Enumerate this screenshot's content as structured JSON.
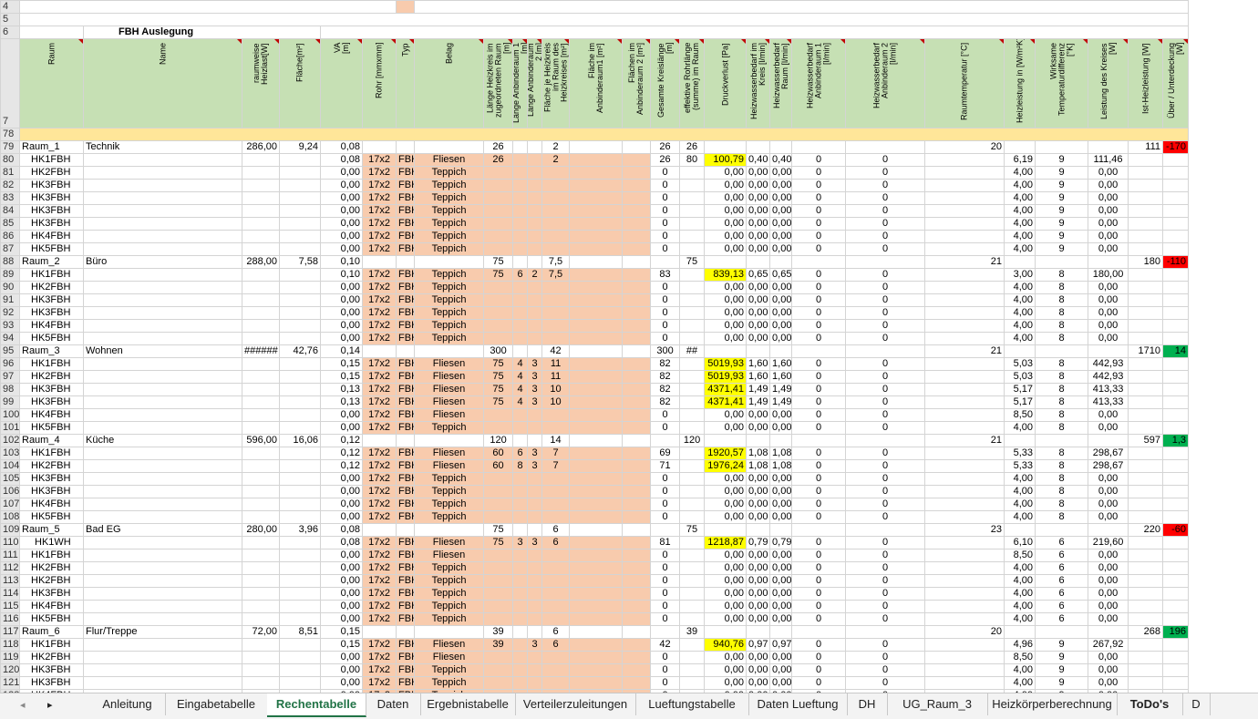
{
  "top_rows": {
    "row4": "4",
    "row5": "5",
    "row6": "6",
    "title": "FBH Auslegung",
    "row7": "7"
  },
  "headers": [
    "Raum",
    "Name",
    "raumweise\nHeizlast[W]",
    "Fläche[m²]",
    "VA\n[m]",
    "Rohr [mmxmm]",
    "Typ",
    "Belag",
    "Länge Heizkreis im\nzugeordneten Raum\n[m]",
    "Länge Anbinderaum 1\n[m]",
    "Länge Anbinderaum\n2 [m]",
    "Fläche je Heizkreis\nim Raum des\nHeizkreises [m²]",
    "Fläche im\nAnbinderaum1 [m²]",
    "Flächen im\nAnbinderaum 2 [m²]",
    "Gesamte Kreislänge\n[m]",
    "effektive Rohrlänge\n(summe) im Raum",
    "Druckverlust [Pa]",
    "Heizwasserbedarf im\nKreis [l/min]",
    "Heizwasserbedarf\nRaum [l/min]",
    "Heizwasserbedarf\nAnbinderaum 1\n[l/min]",
    "Heizwasserbedarf\nAnbinderaum 2\n[l/min]",
    "Raumtemperatur [°C]",
    "Heizleistung in [W/m²K]",
    "Wirksame\nTemperaturdifferenz\n[°K]",
    "Leistung des Kreises\n[W]",
    "Ist-Heizleistung [W]",
    "Über / Unterdeckung\n[W]"
  ],
  "row78": "78",
  "rows": [
    {
      "n": "79",
      "type": "room",
      "raum": "Raum_1",
      "name": "Technik",
      "heizlast": "286,00",
      "flaeche": "9,24",
      "va": "0,08",
      "laenge": "26",
      "fl_hk": "2",
      "ges": "26",
      "eff": "26",
      "temp": "20",
      "ist": "111",
      "diff": "-170",
      "diffc": "red"
    },
    {
      "n": "80",
      "type": "hk",
      "raum": "HK1FBH",
      "va": "0,08",
      "rohr": "17x2",
      "typ": "FBH",
      "belag": "Fliesen",
      "laenge": "26",
      "fl_hk": "2",
      "ges": "26",
      "eff": "80",
      "druck": "100,79",
      "yb": "1",
      "hw": "0,40",
      "hwr": "0,40",
      "a1": "0",
      "a2": "0",
      "hl": "6,19",
      "dt": "9",
      "lk": "111,46"
    },
    {
      "n": "81",
      "type": "hk",
      "raum": "HK2FBH",
      "va": "0,00",
      "rohr": "17x2",
      "typ": "FBH",
      "belag": "Teppich",
      "ges": "0",
      "druck": "0,00",
      "hw": "0,00",
      "hwr": "0,00",
      "a1": "0",
      "a2": "0",
      "hl": "4,00",
      "dt": "9",
      "lk": "0,00"
    },
    {
      "n": "82",
      "type": "hk",
      "raum": "HK3FBH",
      "va": "0,00",
      "rohr": "17x2",
      "typ": "FBH",
      "belag": "Teppich",
      "ges": "0",
      "druck": "0,00",
      "hw": "0,00",
      "hwr": "0,00",
      "a1": "0",
      "a2": "0",
      "hl": "4,00",
      "dt": "9",
      "lk": "0,00"
    },
    {
      "n": "83",
      "type": "hk",
      "raum": "HK3FBH",
      "va": "0,00",
      "rohr": "17x2",
      "typ": "FBH",
      "belag": "Teppich",
      "ges": "0",
      "druck": "0,00",
      "hw": "0,00",
      "hwr": "0,00",
      "a1": "0",
      "a2": "0",
      "hl": "4,00",
      "dt": "9",
      "lk": "0,00"
    },
    {
      "n": "84",
      "type": "hk",
      "raum": "HK3FBH",
      "va": "0,00",
      "rohr": "17x2",
      "typ": "FBH",
      "belag": "Teppich",
      "ges": "0",
      "druck": "0,00",
      "hw": "0,00",
      "hwr": "0,00",
      "a1": "0",
      "a2": "0",
      "hl": "4,00",
      "dt": "9",
      "lk": "0,00"
    },
    {
      "n": "85",
      "type": "hk",
      "raum": "HK3FBH",
      "va": "0,00",
      "rohr": "17x2",
      "typ": "FBH",
      "belag": "Teppich",
      "ges": "0",
      "druck": "0,00",
      "hw": "0,00",
      "hwr": "0,00",
      "a1": "0",
      "a2": "0",
      "hl": "4,00",
      "dt": "9",
      "lk": "0,00"
    },
    {
      "n": "86",
      "type": "hk",
      "raum": "HK4FBH",
      "va": "0,00",
      "rohr": "17x2",
      "typ": "FBH",
      "belag": "Teppich",
      "ges": "0",
      "druck": "0,00",
      "hw": "0,00",
      "hwr": "0,00",
      "a1": "0",
      "a2": "0",
      "hl": "4,00",
      "dt": "9",
      "lk": "0,00"
    },
    {
      "n": "87",
      "type": "hk",
      "raum": "HK5FBH",
      "va": "0,00",
      "rohr": "17x2",
      "typ": "FBH",
      "belag": "Teppich",
      "ges": "0",
      "druck": "0,00",
      "hw": "0,00",
      "hwr": "0,00",
      "a1": "0",
      "a2": "0",
      "hl": "4,00",
      "dt": "9",
      "lk": "0,00"
    },
    {
      "n": "88",
      "type": "room",
      "raum": "Raum_2",
      "name": "Büro",
      "heizlast": "288,00",
      "flaeche": "7,58",
      "va": "0,10",
      "laenge": "75",
      "fl_hk": "7,5",
      "eff": "75",
      "temp": "21",
      "ist": "180",
      "diff": "-110",
      "diffc": "red"
    },
    {
      "n": "89",
      "type": "hk",
      "raum": "HK1FBH",
      "va": "0,10",
      "rohr": "17x2",
      "typ": "FBH",
      "belag": "Teppich",
      "laenge": "75",
      "an1": "6",
      "an2": "2",
      "fl_hk": "7,5",
      "ges": "83",
      "druck": "839,13",
      "yb": "1",
      "hw": "0,65",
      "hwr": "0,65",
      "a1": "0",
      "a2": "0",
      "hl": "3,00",
      "dt": "8",
      "lk": "180,00"
    },
    {
      "n": "90",
      "type": "hk",
      "raum": "HK2FBH",
      "va": "0,00",
      "rohr": "17x2",
      "typ": "FBH",
      "belag": "Teppich",
      "ges": "0",
      "druck": "0,00",
      "hw": "0,00",
      "hwr": "0,00",
      "a1": "0",
      "a2": "0",
      "hl": "4,00",
      "dt": "8",
      "lk": "0,00"
    },
    {
      "n": "91",
      "type": "hk",
      "raum": "HK3FBH",
      "va": "0,00",
      "rohr": "17x2",
      "typ": "FBH",
      "belag": "Teppich",
      "ges": "0",
      "druck": "0,00",
      "hw": "0,00",
      "hwr": "0,00",
      "a1": "0",
      "a2": "0",
      "hl": "4,00",
      "dt": "8",
      "lk": "0,00"
    },
    {
      "n": "92",
      "type": "hk",
      "raum": "HK3FBH",
      "va": "0,00",
      "rohr": "17x2",
      "typ": "FBH",
      "belag": "Teppich",
      "ges": "0",
      "druck": "0,00",
      "hw": "0,00",
      "hwr": "0,00",
      "a1": "0",
      "a2": "0",
      "hl": "4,00",
      "dt": "8",
      "lk": "0,00"
    },
    {
      "n": "93",
      "type": "hk",
      "raum": "HK4FBH",
      "va": "0,00",
      "rohr": "17x2",
      "typ": "FBH",
      "belag": "Teppich",
      "ges": "0",
      "druck": "0,00",
      "hw": "0,00",
      "hwr": "0,00",
      "a1": "0",
      "a2": "0",
      "hl": "4,00",
      "dt": "8",
      "lk": "0,00"
    },
    {
      "n": "94",
      "type": "hk",
      "raum": "HK5FBH",
      "va": "0,00",
      "rohr": "17x2",
      "typ": "FBH",
      "belag": "Teppich",
      "ges": "0",
      "druck": "0,00",
      "hw": "0,00",
      "hwr": "0,00",
      "a1": "0",
      "a2": "0",
      "hl": "4,00",
      "dt": "8",
      "lk": "0,00"
    },
    {
      "n": "95",
      "type": "room",
      "raum": "Raum_3",
      "name": "Wohnen",
      "heizlast": "######",
      "flaeche": "42,76",
      "va": "0,14",
      "laenge": "300",
      "fl_hk": "42",
      "ges": "300",
      "eff": "##",
      "temp": "21",
      "ist": "1710",
      "diff": "14",
      "diffc": "grn"
    },
    {
      "n": "96",
      "type": "hk",
      "raum": "HK1FBH",
      "va": "0,15",
      "rohr": "17x2",
      "typ": "FBH",
      "belag": "Fliesen",
      "laenge": "75",
      "an1": "4",
      "an2": "3",
      "fl_hk": "11",
      "ges": "82",
      "druck": "5019,93",
      "yb": "1",
      "hw": "1,60",
      "hwr": "1,60",
      "a1": "0",
      "a2": "0",
      "hl": "5,03",
      "dt": "8",
      "lk": "442,93"
    },
    {
      "n": "97",
      "type": "hk",
      "raum": "HK2FBH",
      "va": "0,15",
      "rohr": "17x2",
      "typ": "FBH",
      "belag": "Fliesen",
      "laenge": "75",
      "an1": "4",
      "an2": "3",
      "fl_hk": "11",
      "ges": "82",
      "druck": "5019,93",
      "yb": "1",
      "hw": "1,60",
      "hwr": "1,60",
      "a1": "0",
      "a2": "0",
      "hl": "5,03",
      "dt": "8",
      "lk": "442,93"
    },
    {
      "n": "98",
      "type": "hk",
      "raum": "HK3FBH",
      "va": "0,13",
      "rohr": "17x2",
      "typ": "FBH",
      "belag": "Fliesen",
      "laenge": "75",
      "an1": "4",
      "an2": "3",
      "fl_hk": "10",
      "ges": "82",
      "druck": "4371,41",
      "yb": "1",
      "hw": "1,49",
      "hwr": "1,49",
      "a1": "0",
      "a2": "0",
      "hl": "5,17",
      "dt": "8",
      "lk": "413,33"
    },
    {
      "n": "99",
      "type": "hk",
      "raum": "HK3FBH",
      "va": "0,13",
      "rohr": "17x2",
      "typ": "FBH",
      "belag": "Fliesen",
      "laenge": "75",
      "an1": "4",
      "an2": "3",
      "fl_hk": "10",
      "ges": "82",
      "druck": "4371,41",
      "yb": "1",
      "hw": "1,49",
      "hwr": "1,49",
      "a1": "0",
      "a2": "0",
      "hl": "5,17",
      "dt": "8",
      "lk": "413,33"
    },
    {
      "n": "100",
      "type": "hk",
      "raum": "HK4FBH",
      "va": "0,00",
      "rohr": "17x2",
      "typ": "FBH",
      "belag": "Fliesen",
      "ges": "0",
      "druck": "0,00",
      "hw": "0,00",
      "hwr": "0,00",
      "a1": "0",
      "a2": "0",
      "hl": "8,50",
      "dt": "8",
      "lk": "0,00"
    },
    {
      "n": "101",
      "type": "hk",
      "raum": "HK5FBH",
      "va": "0,00",
      "rohr": "17x2",
      "typ": "FBH",
      "belag": "Teppich",
      "ges": "0",
      "druck": "0,00",
      "hw": "0,00",
      "hwr": "0,00",
      "a1": "0",
      "a2": "0",
      "hl": "4,00",
      "dt": "8",
      "lk": "0,00"
    },
    {
      "n": "102",
      "type": "room",
      "raum": "Raum_4",
      "name": "Küche",
      "heizlast": "596,00",
      "flaeche": "16,06",
      "va": "0,12",
      "laenge": "120",
      "fl_hk": "14",
      "eff": "120",
      "temp": "21",
      "ist": "597",
      "diff": "1,3",
      "diffc": "grn"
    },
    {
      "n": "103",
      "type": "hk",
      "raum": "HK1FBH",
      "va": "0,12",
      "rohr": "17x2",
      "typ": "FBH",
      "belag": "Fliesen",
      "laenge": "60",
      "an1": "6",
      "an2": "3",
      "fl_hk": "7",
      "ges": "69",
      "druck": "1920,57",
      "yb": "1",
      "hw": "1,08",
      "hwr": "1,08",
      "a1": "0",
      "a2": "0",
      "hl": "5,33",
      "dt": "8",
      "lk": "298,67"
    },
    {
      "n": "104",
      "type": "hk",
      "raum": "HK2FBH",
      "va": "0,12",
      "rohr": "17x2",
      "typ": "FBH",
      "belag": "Fliesen",
      "laenge": "60",
      "an1": "8",
      "an2": "3",
      "fl_hk": "7",
      "ges": "71",
      "druck": "1976,24",
      "yb": "1",
      "hw": "1,08",
      "hwr": "1,08",
      "a1": "0",
      "a2": "0",
      "hl": "5,33",
      "dt": "8",
      "lk": "298,67"
    },
    {
      "n": "105",
      "type": "hk",
      "raum": "HK3FBH",
      "va": "0,00",
      "rohr": "17x2",
      "typ": "FBH",
      "belag": "Teppich",
      "ges": "0",
      "druck": "0,00",
      "hw": "0,00",
      "hwr": "0,00",
      "a1": "0",
      "a2": "0",
      "hl": "4,00",
      "dt": "8",
      "lk": "0,00"
    },
    {
      "n": "106",
      "type": "hk",
      "raum": "HK3FBH",
      "va": "0,00",
      "rohr": "17x2",
      "typ": "FBH",
      "belag": "Teppich",
      "ges": "0",
      "druck": "0,00",
      "hw": "0,00",
      "hwr": "0,00",
      "a1": "0",
      "a2": "0",
      "hl": "4,00",
      "dt": "8",
      "lk": "0,00"
    },
    {
      "n": "107",
      "type": "hk",
      "raum": "HK4FBH",
      "va": "0,00",
      "rohr": "17x2",
      "typ": "FBH",
      "belag": "Teppich",
      "ges": "0",
      "druck": "0,00",
      "hw": "0,00",
      "hwr": "0,00",
      "a1": "0",
      "a2": "0",
      "hl": "4,00",
      "dt": "8",
      "lk": "0,00"
    },
    {
      "n": "108",
      "type": "hk",
      "raum": "HK5FBH",
      "va": "0,00",
      "rohr": "17x2",
      "typ": "FBH",
      "belag": "Teppich",
      "ges": "0",
      "druck": "0,00",
      "hw": "0,00",
      "hwr": "0,00",
      "a1": "0",
      "a2": "0",
      "hl": "4,00",
      "dt": "8",
      "lk": "0,00"
    },
    {
      "n": "109",
      "type": "room",
      "raum": "Raum_5",
      "name": "Bad EG",
      "heizlast": "280,00",
      "flaeche": "3,96",
      "va": "0,08",
      "laenge": "75",
      "fl_hk": "6",
      "eff": "75",
      "temp": "23",
      "ist": "220",
      "diff": "-60",
      "diffc": "red"
    },
    {
      "n": "110",
      "type": "hk",
      "raum": "HK1WH",
      "va": "0,08",
      "rohr": "17x2",
      "typ": "FBH",
      "belag": "Fliesen",
      "laenge": "75",
      "an1": "3",
      "an2": "3",
      "fl_hk": "6",
      "ges": "81",
      "druck": "1218,87",
      "yb": "1",
      "hw": "0,79",
      "hwr": "0,79",
      "a1": "0",
      "a2": "0",
      "hl": "6,10",
      "dt": "6",
      "lk": "219,60"
    },
    {
      "n": "111",
      "type": "hk",
      "raum": "HK1FBH",
      "va": "0,00",
      "rohr": "17x2",
      "typ": "FBH",
      "belag": "Fliesen",
      "ges": "0",
      "druck": "0,00",
      "hw": "0,00",
      "hwr": "0,00",
      "a1": "0",
      "a2": "0",
      "hl": "8,50",
      "dt": "6",
      "lk": "0,00"
    },
    {
      "n": "112",
      "type": "hk",
      "raum": "HK2FBH",
      "va": "0,00",
      "rohr": "17x2",
      "typ": "FBH",
      "belag": "Teppich",
      "ges": "0",
      "druck": "0,00",
      "hw": "0,00",
      "hwr": "0,00",
      "a1": "0",
      "a2": "0",
      "hl": "4,00",
      "dt": "6",
      "lk": "0,00"
    },
    {
      "n": "113",
      "type": "hk",
      "raum": "HK2FBH",
      "va": "0,00",
      "rohr": "17x2",
      "typ": "FBH",
      "belag": "Teppich",
      "ges": "0",
      "druck": "0,00",
      "hw": "0,00",
      "hwr": "0,00",
      "a1": "0",
      "a2": "0",
      "hl": "4,00",
      "dt": "6",
      "lk": "0,00"
    },
    {
      "n": "114",
      "type": "hk",
      "raum": "HK3FBH",
      "va": "0,00",
      "rohr": "17x2",
      "typ": "FBH",
      "belag": "Teppich",
      "ges": "0",
      "druck": "0,00",
      "hw": "0,00",
      "hwr": "0,00",
      "a1": "0",
      "a2": "0",
      "hl": "4,00",
      "dt": "6",
      "lk": "0,00"
    },
    {
      "n": "115",
      "type": "hk",
      "raum": "HK4FBH",
      "va": "0,00",
      "rohr": "17x2",
      "typ": "FBH",
      "belag": "Teppich",
      "ges": "0",
      "druck": "0,00",
      "hw": "0,00",
      "hwr": "0,00",
      "a1": "0",
      "a2": "0",
      "hl": "4,00",
      "dt": "6",
      "lk": "0,00"
    },
    {
      "n": "116",
      "type": "hk",
      "raum": "HK5FBH",
      "va": "0,00",
      "rohr": "17x2",
      "typ": "FBH",
      "belag": "Teppich",
      "ges": "0",
      "druck": "0,00",
      "hw": "0,00",
      "hwr": "0,00",
      "a1": "0",
      "a2": "0",
      "hl": "4,00",
      "dt": "6",
      "lk": "0,00"
    },
    {
      "n": "117",
      "type": "room",
      "raum": "Raum_6",
      "name": "Flur/Treppe",
      "heizlast": "72,00",
      "flaeche": "8,51",
      "va": "0,15",
      "laenge": "39",
      "fl_hk": "6",
      "eff": "39",
      "temp": "20",
      "ist": "268",
      "diff": "196",
      "diffc": "grn"
    },
    {
      "n": "118",
      "type": "hk",
      "raum": "HK1FBH",
      "va": "0,15",
      "rohr": "17x2",
      "typ": "FBH",
      "belag": "Fliesen",
      "laenge": "39",
      "an2": "3",
      "fl_hk": "6",
      "ges": "42",
      "druck": "940,76",
      "yb": "1",
      "hw": "0,97",
      "hwr": "0,97",
      "a1": "0",
      "a2": "0",
      "hl": "4,96",
      "dt": "9",
      "lk": "267,92"
    },
    {
      "n": "119",
      "type": "hk",
      "raum": "HK2FBH",
      "va": "0,00",
      "rohr": "17x2",
      "typ": "FBH",
      "belag": "Fliesen",
      "ges": "0",
      "druck": "0,00",
      "hw": "0,00",
      "hwr": "0,00",
      "a1": "0",
      "a2": "0",
      "hl": "8,50",
      "dt": "9",
      "lk": "0,00"
    },
    {
      "n": "120",
      "type": "hk",
      "raum": "HK3FBH",
      "va": "0,00",
      "rohr": "17x2",
      "typ": "FBH",
      "belag": "Teppich",
      "ges": "0",
      "druck": "0,00",
      "hw": "0,00",
      "hwr": "0,00",
      "a1": "0",
      "a2": "0",
      "hl": "4,00",
      "dt": "9",
      "lk": "0,00"
    },
    {
      "n": "121",
      "type": "hk",
      "raum": "HK3FBH",
      "va": "0,00",
      "rohr": "17x2",
      "typ": "FBH",
      "belag": "Teppich",
      "ges": "0",
      "druck": "0,00",
      "hw": "0,00",
      "hwr": "0,00",
      "a1": "0",
      "a2": "0",
      "hl": "4,00",
      "dt": "9",
      "lk": "0,00"
    },
    {
      "n": "122",
      "type": "hk",
      "raum": "HK4FBH",
      "va": "0,00",
      "rohr": "17x2",
      "typ": "FBH",
      "belag": "Teppich",
      "ges": "0",
      "druck": "0,00",
      "hw": "0,00",
      "hwr": "0,00",
      "a1": "0",
      "a2": "0",
      "hl": "4,00",
      "dt": "9",
      "lk": "0,00"
    }
  ],
  "tabs": {
    "nav_left": "◂",
    "nav_right": "▸",
    "items": [
      {
        "label": "Anleitung"
      },
      {
        "label": "Eingabetabelle"
      },
      {
        "label": "Rechentabelle",
        "active": true
      },
      {
        "label": "Daten"
      },
      {
        "label": "Ergebnistabelle"
      },
      {
        "label": "Verteilerzuleitungen"
      },
      {
        "label": "Lueftungstabelle"
      },
      {
        "label": "Daten Lueftung"
      },
      {
        "label": "DH"
      },
      {
        "label": "UG_Raum_3"
      },
      {
        "label": "Heizkörperberechnung"
      },
      {
        "label": "ToDo's",
        "bold": true
      },
      {
        "label": "D"
      }
    ]
  },
  "colors": {
    "header_green": "#c6e0b4",
    "input_orange": "#f8cbad",
    "highlight_yellow": "#ffff00",
    "row78_yellow": "#ffe699",
    "negative_red": "#ff0000",
    "positive_green": "#00b050",
    "active_tab": "#217346"
  }
}
